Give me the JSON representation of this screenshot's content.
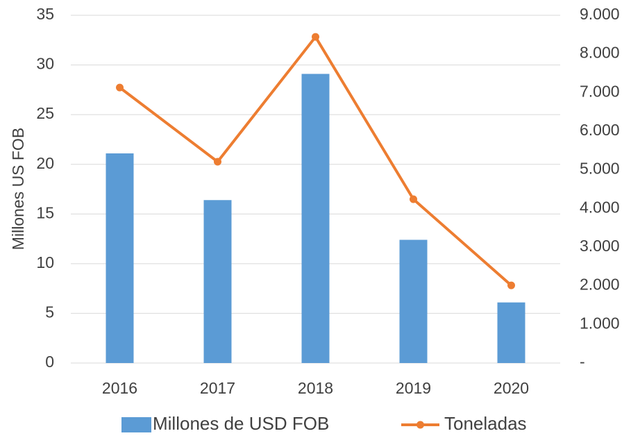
{
  "chart_data": {
    "type": "bar",
    "ylabel": "Millones US FOB",
    "categories": [
      "2016",
      "2017",
      "2018",
      "2019",
      "2020"
    ],
    "series": [
      {
        "name": "Millones de USD FOB",
        "type": "bar",
        "color": "#5b9bd5",
        "values": [
          21.1,
          16.4,
          29.1,
          12.4,
          6.1
        ]
      },
      {
        "name": "Toneladas",
        "type": "line",
        "axis": "y2",
        "color": "#ed7d31",
        "values": [
          7130,
          5210,
          8440,
          4240,
          2010
        ]
      }
    ],
    "ylim": [
      0,
      35
    ],
    "yticks": [
      0,
      5,
      10,
      15,
      20,
      25,
      30,
      35
    ],
    "y2lim": [
      0,
      9000
    ],
    "y2ticks": [
      {
        "value": 0,
        "label": "-"
      },
      {
        "value": 1000,
        "label": "1.000"
      },
      {
        "value": 2000,
        "label": "2.000"
      },
      {
        "value": 3000,
        "label": "3.000"
      },
      {
        "value": 4000,
        "label": "4.000"
      },
      {
        "value": 5000,
        "label": "5.000"
      },
      {
        "value": 6000,
        "label": "6.000"
      },
      {
        "value": 7000,
        "label": "7.000"
      },
      {
        "value": 8000,
        "label": "8.000"
      },
      {
        "value": 9000,
        "label": "9.000"
      }
    ],
    "grid": true,
    "legend": "bottom"
  }
}
